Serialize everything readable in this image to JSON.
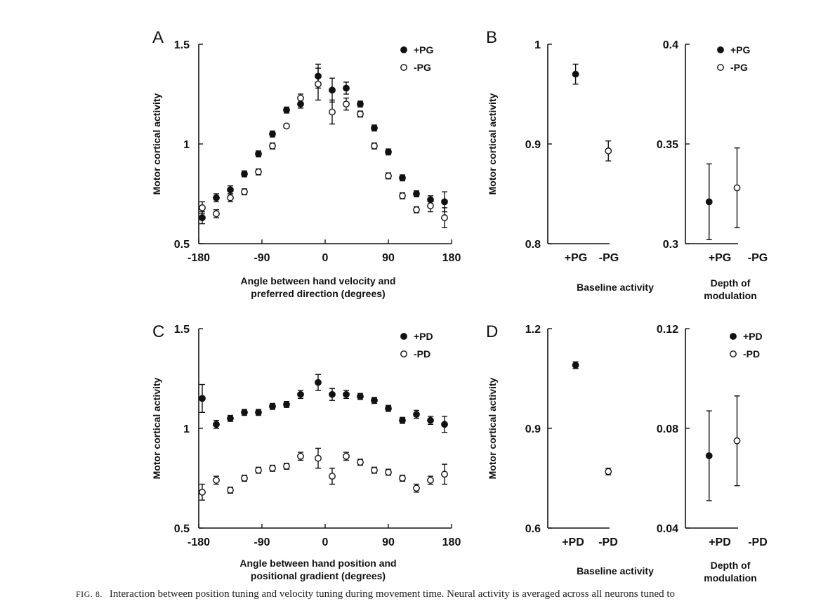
{
  "chart_data": [
    {
      "panel": "A",
      "type": "scatter",
      "ylabel": "Motor cortical activity",
      "xlabel_lines": [
        "Angle between hand velocity and",
        "preferred direction   (degrees)"
      ],
      "xlim": [
        -180,
        180
      ],
      "ylim": [
        0.5,
        1.5
      ],
      "xticks": [
        -180,
        -90,
        0,
        90,
        180
      ],
      "yticks": [
        0.5,
        1,
        1.5
      ],
      "ytick_labels": [
        "0.5",
        "1",
        "1.5"
      ],
      "legend_position": "top-right",
      "series": [
        {
          "name": "+PG",
          "marker": "filled",
          "x": [
            -175,
            -155,
            -135,
            -115,
            -95,
            -75,
            -55,
            -35,
            -10,
            10,
            30,
            50,
            70,
            90,
            110,
            130,
            150,
            170
          ],
          "y": [
            0.63,
            0.73,
            0.77,
            0.85,
            0.95,
            1.05,
            1.17,
            1.2,
            1.34,
            1.27,
            1.28,
            1.2,
            1.08,
            0.96,
            0.83,
            0.75,
            0.72,
            0.71
          ],
          "err": [
            0.03,
            0.02,
            0.02,
            0.015,
            0.015,
            0.015,
            0.015,
            0.02,
            0.06,
            0.06,
            0.03,
            0.015,
            0.015,
            0.015,
            0.015,
            0.015,
            0.02,
            0.05
          ]
        },
        {
          "name": "-PG",
          "marker": "open",
          "x": [
            -175,
            -155,
            -135,
            -115,
            -95,
            -75,
            -55,
            -35,
            -10,
            10,
            30,
            50,
            70,
            90,
            110,
            130,
            150,
            170
          ],
          "y": [
            0.68,
            0.65,
            0.73,
            0.76,
            0.86,
            0.99,
            1.09,
            1.23,
            1.3,
            1.16,
            1.2,
            1.15,
            0.99,
            0.84,
            0.74,
            0.67,
            0.69,
            0.63
          ],
          "err": [
            0.03,
            0.02,
            0.02,
            0.015,
            0.015,
            0.015,
            0.01,
            0.02,
            0.08,
            0.06,
            0.03,
            0.015,
            0.015,
            0.015,
            0.015,
            0.015,
            0.03,
            0.05
          ]
        }
      ]
    },
    {
      "panel": "B",
      "type": "scatter",
      "ylabel": "Motor cortical activity",
      "xlabel_lines": [
        "Baseline activity"
      ],
      "categories": [
        "+PG",
        "-PG"
      ],
      "ylim": [
        0.8,
        1
      ],
      "yticks": [
        0.8,
        0.9,
        1
      ],
      "ytick_labels": [
        "0.8",
        "0.9",
        "1"
      ],
      "series": [
        {
          "name": "+PG",
          "marker": "filled",
          "values": [
            0.97,
            null
          ],
          "err": [
            0.01,
            null
          ]
        },
        {
          "name": "-PG",
          "marker": "open",
          "values": [
            null,
            0.893
          ],
          "err": [
            null,
            0.01
          ]
        }
      ]
    },
    {
      "panel": "",
      "type": "scatter",
      "ylabel": "",
      "xlabel_lines": [
        "Depth of",
        "modulation"
      ],
      "categories": [
        "+PG",
        "-PG"
      ],
      "ylim": [
        0.3,
        0.4
      ],
      "yticks": [
        0.3,
        0.35,
        0.4
      ],
      "ytick_labels": [
        "0.3",
        "0.35",
        "0.4"
      ],
      "legend_position": "top-right",
      "series": [
        {
          "name": "+PG",
          "marker": "filled",
          "values": [
            0.321,
            null
          ],
          "err": [
            0.019,
            null
          ]
        },
        {
          "name": "-PG",
          "marker": "open",
          "values": [
            null,
            0.328
          ],
          "err": [
            null,
            0.02
          ]
        }
      ]
    },
    {
      "panel": "C",
      "type": "scatter",
      "ylabel": "Motor cortical activity",
      "xlabel_lines": [
        "Angle between hand position and",
        "positional gradient   (degrees)"
      ],
      "xlim": [
        -180,
        180
      ],
      "ylim": [
        0.5,
        1.5
      ],
      "xticks": [
        -180,
        -90,
        0,
        90,
        180
      ],
      "yticks": [
        0.5,
        1,
        1.5
      ],
      "ytick_labels": [
        "0.5",
        "1",
        "1.5"
      ],
      "legend_position": "top-right",
      "series": [
        {
          "name": "+PD",
          "marker": "filled",
          "x": [
            -175,
            -155,
            -135,
            -115,
            -95,
            -75,
            -55,
            -35,
            -10,
            10,
            30,
            50,
            70,
            90,
            110,
            130,
            150,
            170
          ],
          "y": [
            1.15,
            1.02,
            1.05,
            1.08,
            1.08,
            1.11,
            1.12,
            1.17,
            1.23,
            1.17,
            1.17,
            1.16,
            1.14,
            1.1,
            1.04,
            1.07,
            1.04,
            1.02
          ],
          "err": [
            0.07,
            0.02,
            0.015,
            0.015,
            0.015,
            0.015,
            0.015,
            0.02,
            0.04,
            0.03,
            0.02,
            0.015,
            0.015,
            0.015,
            0.015,
            0.02,
            0.02,
            0.04
          ]
        },
        {
          "name": "-PD",
          "marker": "open",
          "x": [
            -175,
            -155,
            -135,
            -115,
            -95,
            -75,
            -55,
            -35,
            -10,
            10,
            30,
            50,
            70,
            90,
            110,
            130,
            150,
            170
          ],
          "y": [
            0.68,
            0.74,
            0.69,
            0.75,
            0.79,
            0.8,
            0.81,
            0.86,
            0.85,
            0.76,
            0.86,
            0.83,
            0.79,
            0.78,
            0.75,
            0.7,
            0.74,
            0.77
          ],
          "err": [
            0.04,
            0.02,
            0.015,
            0.015,
            0.015,
            0.015,
            0.015,
            0.02,
            0.05,
            0.04,
            0.02,
            0.015,
            0.015,
            0.015,
            0.015,
            0.02,
            0.02,
            0.05
          ]
        }
      ]
    },
    {
      "panel": "D",
      "type": "scatter",
      "ylabel": "Motor cortical activity",
      "xlabel_lines": [
        "Baseline activity"
      ],
      "categories": [
        "+PD",
        "-PD"
      ],
      "ylim": [
        0.6,
        1.2
      ],
      "yticks": [
        0.6,
        0.9,
        1.2
      ],
      "ytick_labels": [
        "0.6",
        "0.9",
        "1.2"
      ],
      "series": [
        {
          "name": "+PD",
          "marker": "filled",
          "values": [
            1.09,
            null
          ],
          "err": [
            0.01,
            null
          ]
        },
        {
          "name": "-PD",
          "marker": "open",
          "values": [
            null,
            0.77
          ],
          "err": [
            null,
            0.01
          ]
        }
      ]
    },
    {
      "panel": "",
      "type": "scatter",
      "ylabel": "",
      "xlabel_lines": [
        "Depth of",
        "modulation"
      ],
      "categories": [
        "+PD",
        "-PD"
      ],
      "ylim": [
        0.04,
        0.12
      ],
      "yticks": [
        0.04,
        0.08,
        0.12
      ],
      "ytick_labels": [
        "0.04",
        "0.08",
        "0.12"
      ],
      "legend_position": "top-right",
      "series": [
        {
          "name": "+PD",
          "marker": "filled",
          "values": [
            0.069,
            null
          ],
          "err": [
            0.018,
            null
          ]
        },
        {
          "name": "-PD",
          "marker": "open",
          "values": [
            null,
            0.075
          ],
          "err": [
            null,
            0.018
          ]
        }
      ]
    }
  ],
  "caption": {
    "label": "FIG. 8.",
    "text": "Interaction between position tuning and velocity tuning during movement time. Neural activity is averaged across all neurons tuned to"
  }
}
